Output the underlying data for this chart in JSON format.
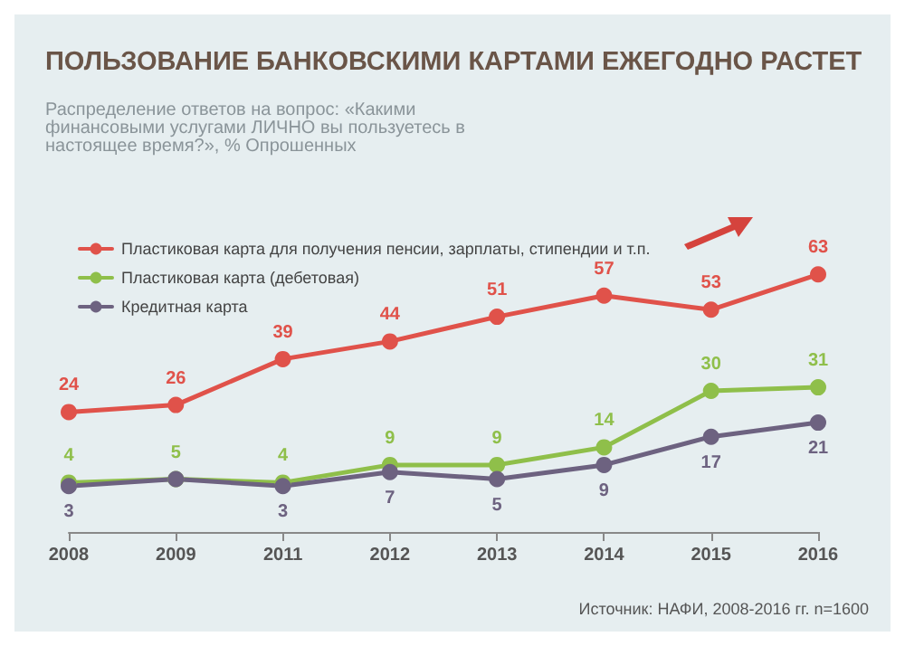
{
  "chart_data": {
    "type": "line",
    "title": "ПОЛЬЗОВАНИЕ БАНКОВСКИМИ КАРТАМИ ЕЖЕГОДНО РАСТЕТ",
    "subtitle": "Распределение ответов на вопрос: «Какими финансовыми услугами ЛИЧНО вы пользуетесь в настоящее время?», % Опрошенных",
    "annotations": [
      "Источник: НАФИ, 2008-2016 гг. n=1600"
    ],
    "categories": [
      "2008",
      "2009",
      "2011",
      "2012",
      "2013",
      "2014",
      "2015",
      "2016"
    ],
    "series": [
      {
        "name": "Пластиковая карта для получения пенсии, зарплаты, стипендии и т.п.",
        "color": "#e0524a",
        "values": [
          24,
          26,
          39,
          44,
          51,
          57,
          53,
          63
        ],
        "value_labels": [
          "24",
          "26",
          "39",
          "44",
          "51",
          "57",
          "53",
          "63"
        ]
      },
      {
        "name": "Пластиковая карта (дебетовая)",
        "color": "#8fbf4a",
        "values": [
          4,
          5,
          4,
          9,
          9,
          14,
          30,
          31
        ],
        "value_labels": [
          "4",
          "5",
          "4",
          "9",
          "9",
          "14",
          "30",
          "31"
        ]
      },
      {
        "name": "Кредитная карта",
        "color": "#6d6280",
        "values": [
          3,
          5,
          3,
          7,
          5,
          9,
          17,
          21
        ],
        "value_labels": [
          "3",
          null,
          "3",
          "7",
          "5",
          "9",
          "17",
          "21"
        ]
      }
    ],
    "legend": "top left",
    "marker": "circle",
    "line_style": "solid",
    "grid": false,
    "tick_labels": "x"
  }
}
